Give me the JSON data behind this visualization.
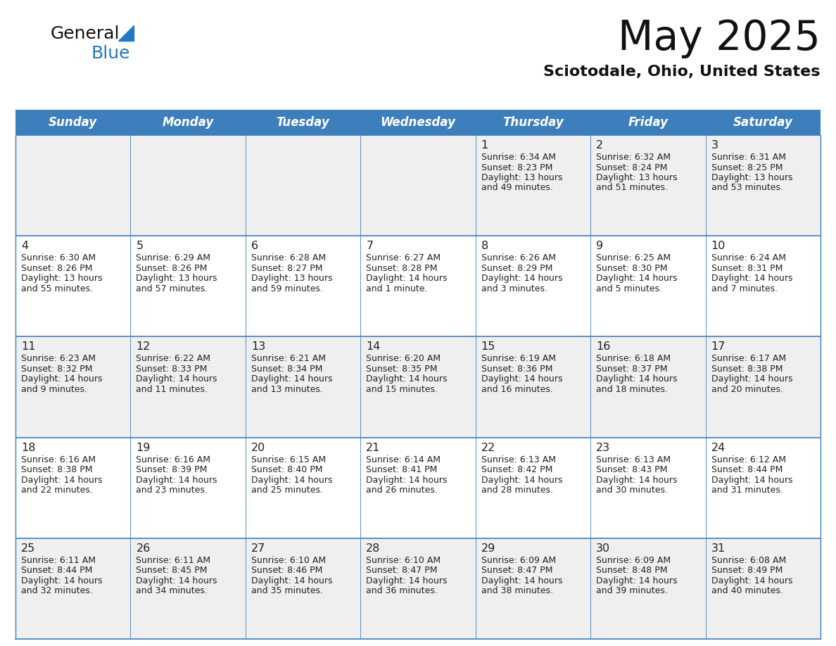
{
  "title": "May 2025",
  "subtitle": "Sciotodale, Ohio, United States",
  "header_bg": "#3d7ebc",
  "header_text_color": "#ffffff",
  "day_names": [
    "Sunday",
    "Monday",
    "Tuesday",
    "Wednesday",
    "Thursday",
    "Friday",
    "Saturday"
  ],
  "row_bg_odd": "#efefef",
  "row_bg_even": "#ffffff",
  "cell_border_color": "#3d7ebc",
  "day_num_color": "#222222",
  "info_color": "#222222",
  "logo_general_color": "#111111",
  "logo_blue_color": "#2178c4",
  "logo_triangle_color": "#2178c4",
  "weeks": [
    [
      null,
      null,
      null,
      null,
      {
        "day": 1,
        "sunrise": "6:34 AM",
        "sunset": "8:23 PM",
        "daylight": "13 hours and 49 minutes"
      },
      {
        "day": 2,
        "sunrise": "6:32 AM",
        "sunset": "8:24 PM",
        "daylight": "13 hours and 51 minutes"
      },
      {
        "day": 3,
        "sunrise": "6:31 AM",
        "sunset": "8:25 PM",
        "daylight": "13 hours and 53 minutes"
      }
    ],
    [
      {
        "day": 4,
        "sunrise": "6:30 AM",
        "sunset": "8:26 PM",
        "daylight": "13 hours and 55 minutes"
      },
      {
        "day": 5,
        "sunrise": "6:29 AM",
        "sunset": "8:26 PM",
        "daylight": "13 hours and 57 minutes"
      },
      {
        "day": 6,
        "sunrise": "6:28 AM",
        "sunset": "8:27 PM",
        "daylight": "13 hours and 59 minutes"
      },
      {
        "day": 7,
        "sunrise": "6:27 AM",
        "sunset": "8:28 PM",
        "daylight": "14 hours and 1 minute"
      },
      {
        "day": 8,
        "sunrise": "6:26 AM",
        "sunset": "8:29 PM",
        "daylight": "14 hours and 3 minutes"
      },
      {
        "day": 9,
        "sunrise": "6:25 AM",
        "sunset": "8:30 PM",
        "daylight": "14 hours and 5 minutes"
      },
      {
        "day": 10,
        "sunrise": "6:24 AM",
        "sunset": "8:31 PM",
        "daylight": "14 hours and 7 minutes"
      }
    ],
    [
      {
        "day": 11,
        "sunrise": "6:23 AM",
        "sunset": "8:32 PM",
        "daylight": "14 hours and 9 minutes"
      },
      {
        "day": 12,
        "sunrise": "6:22 AM",
        "sunset": "8:33 PM",
        "daylight": "14 hours and 11 minutes"
      },
      {
        "day": 13,
        "sunrise": "6:21 AM",
        "sunset": "8:34 PM",
        "daylight": "14 hours and 13 minutes"
      },
      {
        "day": 14,
        "sunrise": "6:20 AM",
        "sunset": "8:35 PM",
        "daylight": "14 hours and 15 minutes"
      },
      {
        "day": 15,
        "sunrise": "6:19 AM",
        "sunset": "8:36 PM",
        "daylight": "14 hours and 16 minutes"
      },
      {
        "day": 16,
        "sunrise": "6:18 AM",
        "sunset": "8:37 PM",
        "daylight": "14 hours and 18 minutes"
      },
      {
        "day": 17,
        "sunrise": "6:17 AM",
        "sunset": "8:38 PM",
        "daylight": "14 hours and 20 minutes"
      }
    ],
    [
      {
        "day": 18,
        "sunrise": "6:16 AM",
        "sunset": "8:38 PM",
        "daylight": "14 hours and 22 minutes"
      },
      {
        "day": 19,
        "sunrise": "6:16 AM",
        "sunset": "8:39 PM",
        "daylight": "14 hours and 23 minutes"
      },
      {
        "day": 20,
        "sunrise": "6:15 AM",
        "sunset": "8:40 PM",
        "daylight": "14 hours and 25 minutes"
      },
      {
        "day": 21,
        "sunrise": "6:14 AM",
        "sunset": "8:41 PM",
        "daylight": "14 hours and 26 minutes"
      },
      {
        "day": 22,
        "sunrise": "6:13 AM",
        "sunset": "8:42 PM",
        "daylight": "14 hours and 28 minutes"
      },
      {
        "day": 23,
        "sunrise": "6:13 AM",
        "sunset": "8:43 PM",
        "daylight": "14 hours and 30 minutes"
      },
      {
        "day": 24,
        "sunrise": "6:12 AM",
        "sunset": "8:44 PM",
        "daylight": "14 hours and 31 minutes"
      }
    ],
    [
      {
        "day": 25,
        "sunrise": "6:11 AM",
        "sunset": "8:44 PM",
        "daylight": "14 hours and 32 minutes"
      },
      {
        "day": 26,
        "sunrise": "6:11 AM",
        "sunset": "8:45 PM",
        "daylight": "14 hours and 34 minutes"
      },
      {
        "day": 27,
        "sunrise": "6:10 AM",
        "sunset": "8:46 PM",
        "daylight": "14 hours and 35 minutes"
      },
      {
        "day": 28,
        "sunrise": "6:10 AM",
        "sunset": "8:47 PM",
        "daylight": "14 hours and 36 minutes"
      },
      {
        "day": 29,
        "sunrise": "6:09 AM",
        "sunset": "8:47 PM",
        "daylight": "14 hours and 38 minutes"
      },
      {
        "day": 30,
        "sunrise": "6:09 AM",
        "sunset": "8:48 PM",
        "daylight": "14 hours and 39 minutes"
      },
      {
        "day": 31,
        "sunrise": "6:08 AM",
        "sunset": "8:49 PM",
        "daylight": "14 hours and 40 minutes"
      }
    ]
  ]
}
